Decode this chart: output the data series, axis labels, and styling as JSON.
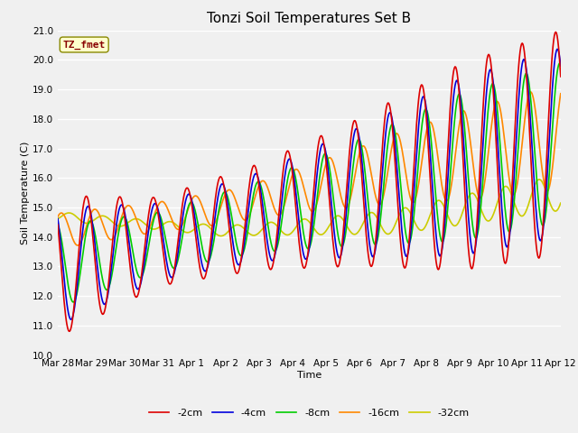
{
  "title": "Tonzi Soil Temperatures Set B",
  "xlabel": "Time",
  "ylabel": "Soil Temperature (C)",
  "annotation": "TZ_fmet",
  "ylim": [
    10.0,
    21.0
  ],
  "yticks": [
    10.0,
    11.0,
    12.0,
    13.0,
    14.0,
    15.0,
    16.0,
    17.0,
    18.0,
    19.0,
    20.0,
    21.0
  ],
  "series_colors": {
    "-2cm": "#dd0000",
    "-4cm": "#0000dd",
    "-8cm": "#00cc00",
    "-16cm": "#ff8800",
    "-32cm": "#cccc00"
  },
  "series_linewidth": 1.2,
  "bg_color": "#f0f0f0",
  "title_fontsize": 11,
  "axis_label_fontsize": 8,
  "tick_fontsize": 7.5,
  "legend_fontsize": 8,
  "annotation_fontsize": 8,
  "x_tick_labels": [
    "Mar 28",
    "Mar 29",
    "Mar 30",
    "Mar 31",
    "Apr 1",
    "Apr 2",
    "Apr 3",
    "Apr 4",
    "Apr 5",
    "Apr 6",
    "Apr 7",
    "Apr 8",
    "Apr 9",
    "Apr 10",
    "Apr 11",
    "Apr 12"
  ],
  "num_days": 15
}
